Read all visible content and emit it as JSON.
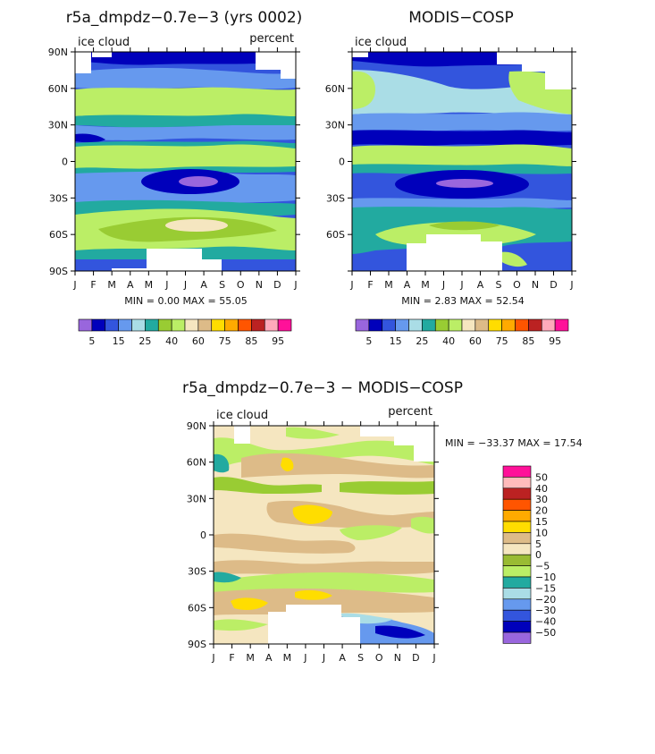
{
  "chart_data": [
    {
      "type": "heatmap",
      "id": "model",
      "title": "r5a_dmpdz−0.7e−3 (yrs 0002)",
      "left_label": "ice cloud",
      "right_label": "percent",
      "min_max_text": "MIN =    0.00 MAX =  55.05",
      "min": 0.0,
      "max": 55.05,
      "xlabel": "",
      "ylabel": "",
      "show_y_labels": "model"
    },
    {
      "type": "heatmap",
      "id": "obs",
      "title": "MODIS−COSP",
      "left_label": "ice cloud",
      "right_label": "",
      "min_max_text": "MIN =    2.83 MAX =  52.54",
      "min": 2.83,
      "max": 52.54
    },
    {
      "type": "heatmap",
      "id": "diff",
      "title": "r5a_dmpdz−0.7e−3 − MODIS−COSP",
      "left_label": "ice cloud",
      "right_label": "percent",
      "min_max_text": "MIN = −33.37 MAX =   17.54",
      "min": -33.37,
      "max": 17.54
    }
  ],
  "axes": {
    "x_ticks": [
      "J",
      "F",
      "M",
      "A",
      "M",
      "J",
      "J",
      "A",
      "S",
      "O",
      "N",
      "D",
      "J"
    ],
    "y_ticks": [
      "90N",
      "60N",
      "30N",
      "0",
      "30S",
      "60S",
      "90S"
    ],
    "y_values": [
      90,
      60,
      30,
      0,
      -30,
      -60,
      -90
    ]
  },
  "colorbar_abs": {
    "colors": [
      "#9966dd",
      "#0000bb",
      "#3355dd",
      "#6699ee",
      "#aadde6",
      "#22aaa0",
      "#99cc33",
      "#bbee66",
      "#f5e6c0",
      "#ddbb88",
      "#ffdd00",
      "#ffaa00",
      "#ff5500",
      "#bb2222",
      "#ffaabb",
      "#ff1199"
    ],
    "labels": [
      "5",
      "15",
      "25",
      "40",
      "60",
      "75",
      "85",
      "95"
    ]
  },
  "colorbar_diff": {
    "colors": [
      "#ff1199",
      "#ffbbbb",
      "#bb2222",
      "#ff5500",
      "#ffaa00",
      "#ffdd00",
      "#ddbb88",
      "#f5e6c0",
      "#99bb33",
      "#bbee66",
      "#22aaa0",
      "#aadde6",
      "#6699ee",
      "#3355dd",
      "#0000bb",
      "#9966dd"
    ],
    "labels": [
      "50",
      "40",
      "30",
      "20",
      "15",
      "10",
      "5",
      "0",
      "−5",
      "−10",
      "−15",
      "−20",
      "−30",
      "−40",
      "−50"
    ]
  }
}
